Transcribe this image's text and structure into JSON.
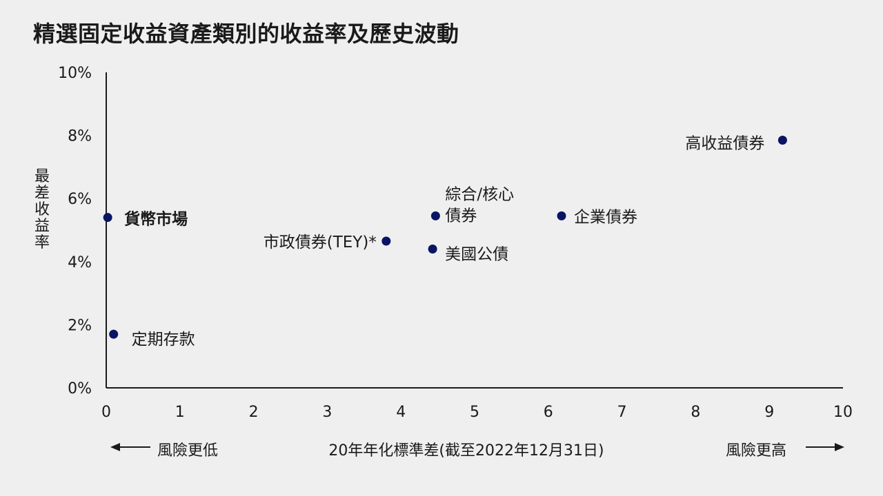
{
  "chart_data": {
    "type": "scatter",
    "title": "精選固定收益資產類別的收益率及歷史波動",
    "xlabel": "20年年化標準差(截至2022年12月31日)",
    "ylabel": "最差收益率",
    "xlim": [
      0,
      10
    ],
    "ylim": [
      0,
      10
    ],
    "x_ticks": [
      "0",
      "1",
      "2",
      "3",
      "4",
      "5",
      "6",
      "7",
      "8",
      "9",
      "10"
    ],
    "y_ticks": [
      "0%",
      "2%",
      "4%",
      "6%",
      "8%",
      "10%"
    ],
    "points": [
      {
        "label": "貨幣市場",
        "x": 0.02,
        "y": 5.4,
        "bold": true
      },
      {
        "label": "定期存款",
        "x": 0.1,
        "y": 1.7
      },
      {
        "label": "市政債券(TEY)*",
        "x": 3.8,
        "y": 4.65
      },
      {
        "label": "綜合/核心債券",
        "label_lines": [
          "綜合/核心",
          "債券"
        ],
        "x": 4.47,
        "y": 5.45
      },
      {
        "label": "美國公債",
        "x": 4.43,
        "y": 4.4
      },
      {
        "label": "企業債券",
        "x": 6.18,
        "y": 5.45
      },
      {
        "label": "高收益債券",
        "x": 9.18,
        "y": 7.85
      }
    ],
    "marker_color": "#0a1464",
    "grid": false,
    "legend": "none"
  },
  "annotations": {
    "risk_low": "風險更低",
    "risk_high": "風險更高"
  }
}
